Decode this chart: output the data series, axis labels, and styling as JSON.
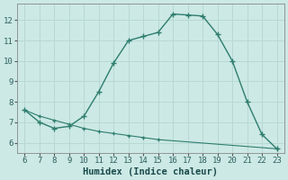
{
  "xlabel": "Humidex (Indice chaleur)",
  "line1_x": [
    6,
    7,
    8,
    9,
    10,
    11,
    12,
    13,
    14,
    15,
    16,
    17,
    18,
    19,
    20,
    21,
    22,
    23
  ],
  "line1_y": [
    7.6,
    7.0,
    6.7,
    6.8,
    7.3,
    8.5,
    9.9,
    11.0,
    11.2,
    11.4,
    12.3,
    12.25,
    12.2,
    11.3,
    10.0,
    8.0,
    6.4,
    5.7
  ],
  "line2_x": [
    6,
    7,
    8,
    9,
    10,
    11,
    12,
    13,
    14,
    15,
    23
  ],
  "line2_y": [
    7.6,
    7.3,
    7.1,
    6.9,
    6.7,
    6.55,
    6.45,
    6.35,
    6.25,
    6.15,
    5.7
  ],
  "line_color": "#2e7d6e",
  "bg_color": "#cce9e5",
  "grid_color": "#b8d8d4",
  "xlim": [
    5.5,
    23.5
  ],
  "ylim": [
    5.5,
    12.8
  ],
  "xticks": [
    6,
    7,
    8,
    9,
    10,
    11,
    12,
    13,
    14,
    15,
    16,
    17,
    18,
    19,
    20,
    21,
    22,
    23
  ],
  "yticks": [
    6,
    7,
    8,
    9,
    10,
    11,
    12
  ],
  "tick_fontsize": 6.5,
  "xlabel_fontsize": 7.5
}
